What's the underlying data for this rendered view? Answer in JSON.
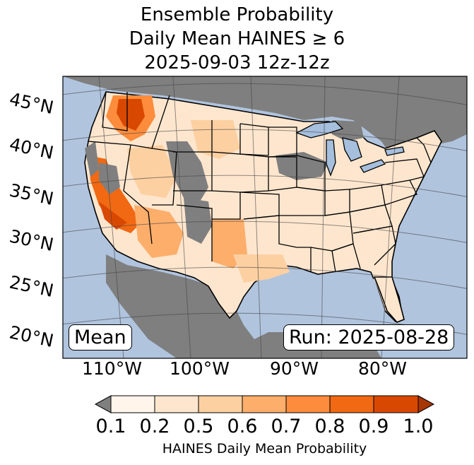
{
  "title": {
    "line1": "Ensemble Probability",
    "line2": "Daily Mean HAINES ≥ 6",
    "line3": "2025-09-03 12z-12z"
  },
  "map": {
    "region": "Contiguous United States",
    "lat_labels": [
      "45°N",
      "40°N",
      "35°N",
      "30°N",
      "25°N",
      "20°N"
    ],
    "lon_labels": [
      "110°W",
      "100°W",
      "90°W",
      "80°W"
    ],
    "mean_label": "Mean",
    "run_label": "Run: 2025-08-28",
    "colors": {
      "ocean": "#b0c4de",
      "lakes": "#a5bfdd",
      "missing_gray": "#7f7f7f"
    }
  },
  "colorbar": {
    "title": "HAINES Daily Mean Probability",
    "ticks": [
      "0.1",
      "0.2",
      "0.5",
      "0.6",
      "0.7",
      "0.8",
      "0.9",
      "1.0"
    ],
    "under_color": "#7f7f7f",
    "colors": [
      "#fff5eb",
      "#fee6ce",
      "#fdd0a2",
      "#fdae6b",
      "#fd8d3c",
      "#f16913",
      "#d94801",
      "#a63603"
    ]
  }
}
